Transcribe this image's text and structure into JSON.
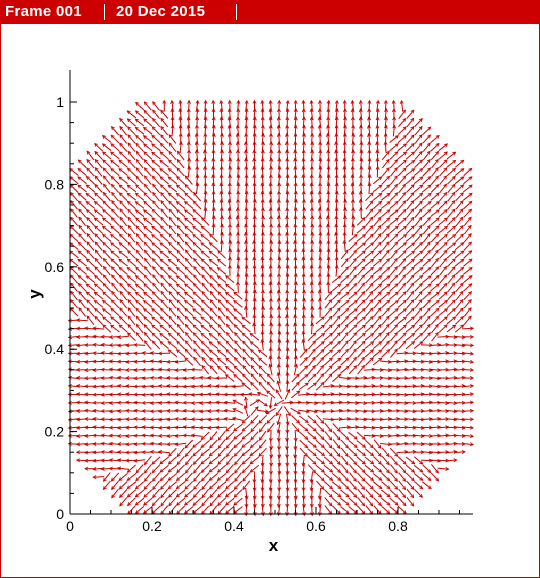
{
  "header": {
    "frame_label": "Frame 001",
    "date_label": "20 Dec 2015",
    "bar_color": "#cc0000",
    "text_color": "#ffffff"
  },
  "chart_data": {
    "type": "vector-field",
    "title": "",
    "xlabel": "x",
    "ylabel": "y",
    "xlim": [
      0,
      0.98
    ],
    "ylim": [
      0,
      1.05
    ],
    "xticks": [
      0,
      0.2,
      0.4,
      0.6,
      0.8
    ],
    "xtick_labels": [
      "0",
      "0.2",
      "0.4",
      "0.6",
      "0.8"
    ],
    "yticks": [
      0,
      0.2,
      0.4,
      0.6,
      0.8,
      1
    ],
    "ytick_labels": [
      "0",
      "0.2",
      "0.4",
      "0.6",
      "0.8",
      "1"
    ],
    "grid": false,
    "legend": "none",
    "vector_color": "#cc0000",
    "domain": {
      "description_shape": "octagon",
      "vertices": [
        [
          0.16,
          1.0
        ],
        [
          0.82,
          1.0
        ],
        [
          0.98,
          0.84
        ],
        [
          0.98,
          0.16
        ],
        [
          0.82,
          0.0
        ],
        [
          0.16,
          0.0
        ],
        [
          0.0,
          0.16
        ],
        [
          0.0,
          0.84
        ]
      ]
    },
    "grid_spacing": 0.02,
    "singular_point": [
      0.52,
      0.27
    ]
  }
}
